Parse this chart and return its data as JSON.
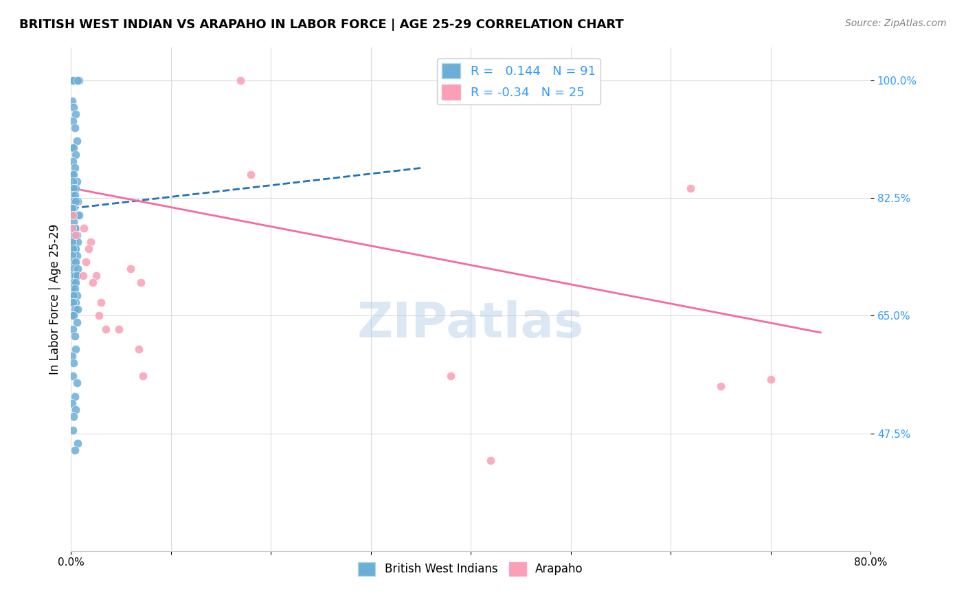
{
  "title": "BRITISH WEST INDIAN VS ARAPAHO IN LABOR FORCE | AGE 25-29 CORRELATION CHART",
  "source": "Source: ZipAtlas.com",
  "xlabel": "",
  "ylabel": "In Labor Force | Age 25-29",
  "xlim": [
    0.0,
    0.8
  ],
  "ylim": [
    0.3,
    1.05
  ],
  "yticks": [
    0.475,
    0.65,
    0.825,
    1.0
  ],
  "ytick_labels": [
    "47.5%",
    "65.0%",
    "82.5%",
    "100.0%"
  ],
  "xticks": [
    0.0,
    0.1,
    0.2,
    0.3,
    0.4,
    0.5,
    0.6,
    0.7,
    0.8
  ],
  "xtick_labels": [
    "0.0%",
    "",
    "",
    "",
    "",
    "",
    "",
    "",
    "80.0%"
  ],
  "blue_R": 0.144,
  "blue_N": 91,
  "pink_R": -0.34,
  "pink_N": 25,
  "blue_color": "#6baed6",
  "pink_color": "#fa9fb5",
  "blue_line_color": "#2171b5",
  "pink_line_color": "#f768a1",
  "watermark": "ZIPatlas",
  "blue_scatter_x": [
    0.005,
    0.002,
    0.003,
    0.001,
    0.008,
    0.004,
    0.006,
    0.003,
    0.002,
    0.007,
    0.001,
    0.003,
    0.005,
    0.002,
    0.004,
    0.006,
    0.001,
    0.003,
    0.005,
    0.002,
    0.004,
    0.001,
    0.003,
    0.006,
    0.002,
    0.005,
    0.003,
    0.001,
    0.004,
    0.007,
    0.002,
    0.005,
    0.003,
    0.001,
    0.006,
    0.004,
    0.002,
    0.008,
    0.003,
    0.005,
    0.001,
    0.004,
    0.006,
    0.002,
    0.003,
    0.007,
    0.001,
    0.004,
    0.005,
    0.002,
    0.003,
    0.006,
    0.001,
    0.004,
    0.002,
    0.005,
    0.003,
    0.007,
    0.001,
    0.004,
    0.006,
    0.002,
    0.003,
    0.005,
    0.001,
    0.004,
    0.002,
    0.006,
    0.003,
    0.001,
    0.005,
    0.002,
    0.004,
    0.007,
    0.001,
    0.003,
    0.006,
    0.002,
    0.004,
    0.005,
    0.001,
    0.003,
    0.002,
    0.006,
    0.004,
    0.001,
    0.005,
    0.003,
    0.002,
    0.007,
    0.004
  ],
  "blue_scatter_y": [
    1.0,
    1.0,
    1.0,
    1.0,
    1.0,
    1.0,
    1.0,
    1.0,
    1.0,
    1.0,
    0.97,
    0.96,
    0.95,
    0.94,
    0.93,
    0.91,
    0.9,
    0.9,
    0.89,
    0.88,
    0.87,
    0.86,
    0.86,
    0.85,
    0.85,
    0.84,
    0.84,
    0.83,
    0.83,
    0.82,
    0.82,
    0.82,
    0.81,
    0.81,
    0.8,
    0.8,
    0.8,
    0.8,
    0.79,
    0.78,
    0.78,
    0.78,
    0.77,
    0.77,
    0.76,
    0.76,
    0.76,
    0.75,
    0.75,
    0.75,
    0.74,
    0.74,
    0.74,
    0.73,
    0.73,
    0.73,
    0.72,
    0.72,
    0.71,
    0.71,
    0.71,
    0.7,
    0.7,
    0.7,
    0.69,
    0.69,
    0.68,
    0.68,
    0.68,
    0.67,
    0.67,
    0.67,
    0.66,
    0.66,
    0.65,
    0.65,
    0.64,
    0.63,
    0.62,
    0.6,
    0.59,
    0.58,
    0.56,
    0.55,
    0.53,
    0.52,
    0.51,
    0.5,
    0.48,
    0.46,
    0.45
  ],
  "pink_scatter_x": [
    0.002,
    0.001,
    0.013,
    0.005,
    0.02,
    0.018,
    0.015,
    0.012,
    0.025,
    0.022,
    0.03,
    0.028,
    0.035,
    0.048,
    0.06,
    0.07,
    0.068,
    0.072,
    0.17,
    0.18,
    0.62,
    0.65,
    0.7,
    0.38,
    0.42
  ],
  "pink_scatter_y": [
    0.8,
    0.78,
    0.78,
    0.77,
    0.76,
    0.75,
    0.73,
    0.71,
    0.71,
    0.7,
    0.67,
    0.65,
    0.63,
    0.63,
    0.72,
    0.7,
    0.6,
    0.56,
    1.0,
    0.86,
    0.84,
    0.545,
    0.555,
    0.56,
    0.435
  ],
  "blue_trend_x": [
    0.001,
    0.35
  ],
  "blue_trend_y": [
    0.81,
    0.87
  ],
  "pink_trend_x": [
    0.001,
    0.75
  ],
  "pink_trend_y": [
    0.84,
    0.625
  ]
}
